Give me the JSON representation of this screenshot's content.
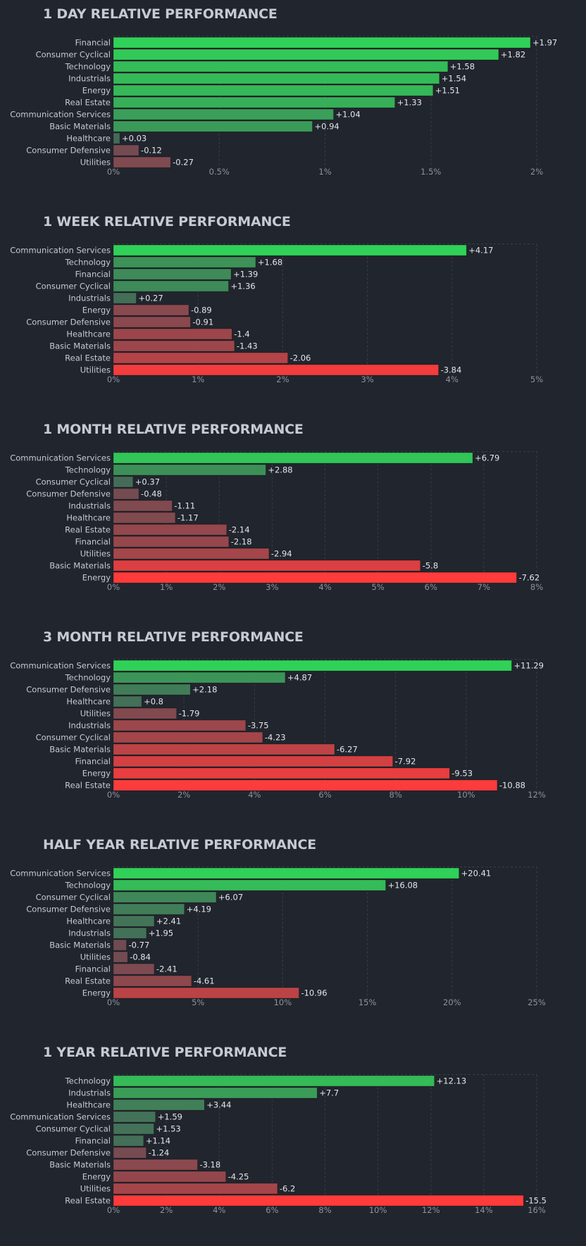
{
  "chart_data": [
    {
      "type": "bar",
      "orientation": "horizontal",
      "title": "1 DAY RELATIVE PERFORMANCE",
      "categories": [
        "Financial",
        "Consumer Cyclical",
        "Technology",
        "Industrials",
        "Energy",
        "Real Estate",
        "Communication Services",
        "Basic Materials",
        "Healthcare",
        "Consumer Defensive",
        "Utilities"
      ],
      "values": [
        1.97,
        1.82,
        1.58,
        1.54,
        1.51,
        1.33,
        1.04,
        0.94,
        0.03,
        -0.12,
        -0.27
      ],
      "value_labels": [
        "+1.97",
        "+1.82",
        "+1.58",
        "+1.54",
        "+1.51",
        "+1.33",
        "+1.04",
        "+0.94",
        "+0.03",
        "-0.12",
        "-0.27"
      ],
      "xlim": [
        0,
        2
      ],
      "ticks": [
        0,
        0.5,
        1,
        1.5,
        2
      ],
      "tick_labels": [
        "0%",
        "0.5%",
        "1%",
        "1.5%",
        "2%"
      ]
    },
    {
      "type": "bar",
      "orientation": "horizontal",
      "title": "1 WEEK RELATIVE PERFORMANCE",
      "categories": [
        "Communication Services",
        "Technology",
        "Financial",
        "Consumer Cyclical",
        "Industrials",
        "Energy",
        "Consumer Defensive",
        "Healthcare",
        "Basic Materials",
        "Real Estate",
        "Utilities"
      ],
      "values": [
        4.17,
        1.68,
        1.39,
        1.36,
        0.27,
        -0.89,
        -0.91,
        -1.4,
        -1.43,
        -2.06,
        -3.84
      ],
      "value_labels": [
        "+4.17",
        "+1.68",
        "+1.39",
        "+1.36",
        "+0.27",
        "-0.89",
        "-0.91",
        "-1.4",
        "-1.43",
        "-2.06",
        "-3.84"
      ],
      "xlim": [
        0,
        5
      ],
      "ticks": [
        0,
        1,
        2,
        3,
        4,
        5
      ],
      "tick_labels": [
        "0%",
        "1%",
        "2%",
        "3%",
        "4%",
        "5%"
      ]
    },
    {
      "type": "bar",
      "orientation": "horizontal",
      "title": "1 MONTH RELATIVE PERFORMANCE",
      "categories": [
        "Communication Services",
        "Technology",
        "Consumer Cyclical",
        "Consumer Defensive",
        "Industrials",
        "Healthcare",
        "Real Estate",
        "Financial",
        "Utilities",
        "Basic Materials",
        "Energy"
      ],
      "values": [
        6.79,
        2.88,
        0.37,
        -0.48,
        -1.11,
        -1.17,
        -2.14,
        -2.18,
        -2.94,
        -5.8,
        -7.62
      ],
      "value_labels": [
        "+6.79",
        "+2.88",
        "+0.37",
        "-0.48",
        "-1.11",
        "-1.17",
        "-2.14",
        "-2.18",
        "-2.94",
        "-5.8",
        "-7.62"
      ],
      "xlim": [
        0,
        8
      ],
      "ticks": [
        0,
        1,
        2,
        3,
        4,
        5,
        6,
        7,
        8
      ],
      "tick_labels": [
        "0%",
        "1%",
        "2%",
        "3%",
        "4%",
        "5%",
        "6%",
        "7%",
        "8%"
      ]
    },
    {
      "type": "bar",
      "orientation": "horizontal",
      "title": "3 MONTH RELATIVE PERFORMANCE",
      "categories": [
        "Communication Services",
        "Technology",
        "Consumer Defensive",
        "Healthcare",
        "Utilities",
        "Industrials",
        "Consumer Cyclical",
        "Basic Materials",
        "Financial",
        "Energy",
        "Real Estate"
      ],
      "values": [
        11.29,
        4.87,
        2.18,
        0.8,
        -1.79,
        -3.75,
        -4.23,
        -6.27,
        -7.92,
        -9.53,
        -10.88
      ],
      "value_labels": [
        "+11.29",
        "+4.87",
        "+2.18",
        "+0.8",
        "-1.79",
        "-3.75",
        "-4.23",
        "-6.27",
        "-7.92",
        "-9.53",
        "-10.88"
      ],
      "xlim": [
        0,
        12
      ],
      "ticks": [
        0,
        2,
        4,
        6,
        8,
        10,
        12
      ],
      "tick_labels": [
        "0%",
        "2%",
        "4%",
        "6%",
        "8%",
        "10%",
        "12%"
      ]
    },
    {
      "type": "bar",
      "orientation": "horizontal",
      "title": "HALF YEAR RELATIVE PERFORMANCE",
      "categories": [
        "Communication Services",
        "Technology",
        "Consumer Cyclical",
        "Consumer Defensive",
        "Healthcare",
        "Industrials",
        "Basic Materials",
        "Utilities",
        "Financial",
        "Real Estate",
        "Energy"
      ],
      "values": [
        20.41,
        16.08,
        6.07,
        4.19,
        2.41,
        1.95,
        -0.77,
        -0.84,
        -2.41,
        -4.61,
        -10.96
      ],
      "value_labels": [
        "+20.41",
        "+16.08",
        "+6.07",
        "+4.19",
        "+2.41",
        "+1.95",
        "-0.77",
        "-0.84",
        "-2.41",
        "-4.61",
        "-10.96"
      ],
      "xlim": [
        0,
        25
      ],
      "ticks": [
        0,
        5,
        10,
        15,
        20,
        25
      ],
      "tick_labels": [
        "0%",
        "5%",
        "10%",
        "15%",
        "20%",
        "25%"
      ]
    },
    {
      "type": "bar",
      "orientation": "horizontal",
      "title": "1 YEAR RELATIVE PERFORMANCE",
      "categories": [
        "Technology",
        "Industrials",
        "Healthcare",
        "Communication Services",
        "Consumer Cyclical",
        "Financial",
        "Consumer Defensive",
        "Basic Materials",
        "Energy",
        "Utilities",
        "Real Estate"
      ],
      "values": [
        12.13,
        7.7,
        3.44,
        1.59,
        1.53,
        1.14,
        -1.24,
        -3.18,
        -4.25,
        -6.2,
        -15.5
      ],
      "value_labels": [
        "+12.13",
        "+7.7",
        "+3.44",
        "+1.59",
        "+1.53",
        "+1.14",
        "-1.24",
        "-3.18",
        "-4.25",
        "-6.2",
        "-15.5"
      ],
      "xlim": [
        0,
        16
      ],
      "ticks": [
        0,
        2,
        4,
        6,
        8,
        10,
        12,
        14,
        16
      ],
      "tick_labels": [
        "0%",
        "2%",
        "4%",
        "6%",
        "8%",
        "10%",
        "12%",
        "14%",
        "16%"
      ]
    }
  ],
  "colors": {
    "background": "#21252d",
    "positive_strong": "#30d158",
    "negative_strong": "#ff3b3b",
    "neutral": "#4a5058",
    "grid": "#3a3f48"
  }
}
